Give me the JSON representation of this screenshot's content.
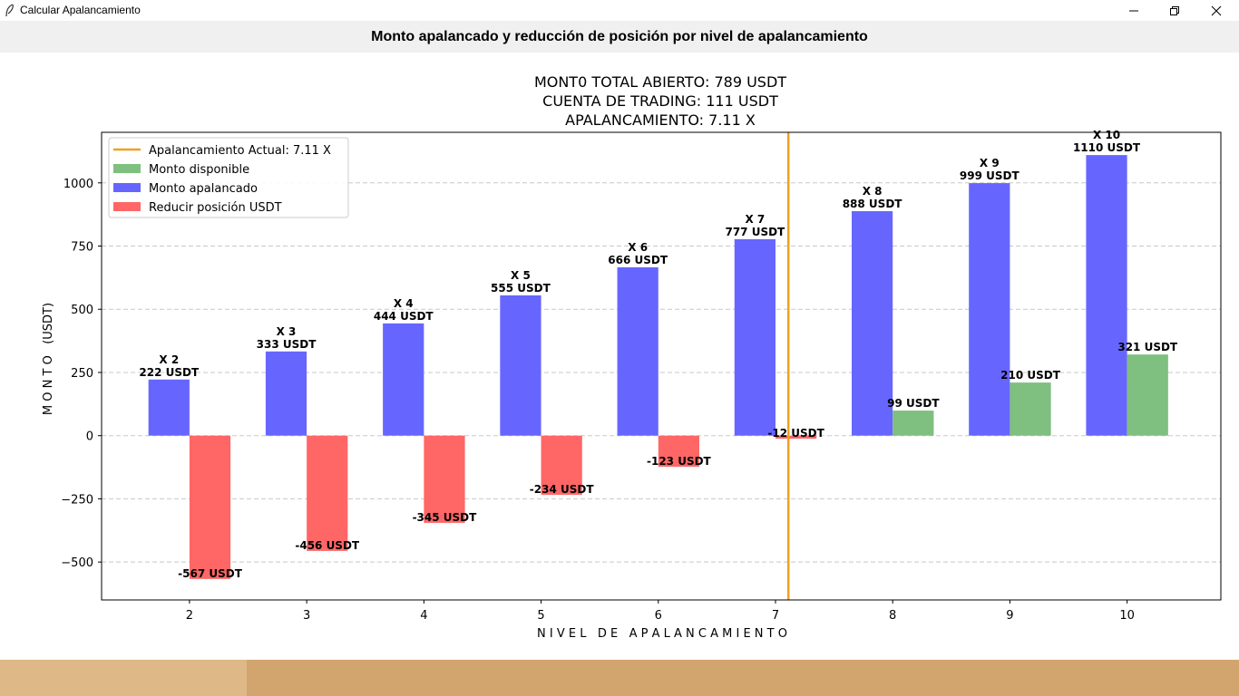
{
  "window": {
    "title": "Calcular Apalancamiento"
  },
  "header": {
    "title": "Monto apalancado y reducción de posición por nivel de apalancamiento"
  },
  "chart_data": {
    "type": "bar",
    "title_lines": [
      "MONT0 TOTAL ABIERTO: 789 USDT",
      "CUENTA DE TRADING: 111 USDT",
      "APALANCAMIENTO: 7.11  X"
    ],
    "xlabel": "N I V E L   D E   A P A L A N C A M I E N T O",
    "ylabel": "M O N T O   (USDT)",
    "x": [
      2,
      3,
      4,
      5,
      6,
      7,
      8,
      9,
      10
    ],
    "xlim": [
      1.25,
      10.8
    ],
    "ylim": [
      -650,
      1200
    ],
    "yticks": [
      -500,
      -250,
      0,
      250,
      500,
      750,
      1000
    ],
    "ytick_labels": [
      "−500",
      "−250",
      "0",
      "250",
      "500",
      "750",
      "1000"
    ],
    "series": [
      {
        "name": "Monto apalancado",
        "color": "#6666ff",
        "values": [
          222,
          333,
          444,
          555,
          666,
          777,
          888,
          999,
          1110
        ],
        "labels": [
          [
            "X 2",
            "222 USDT"
          ],
          [
            "X 3",
            "333 USDT"
          ],
          [
            "X 4",
            "444 USDT"
          ],
          [
            "X 5",
            "555 USDT"
          ],
          [
            "X 6",
            "666 USDT"
          ],
          [
            "X 7",
            "777 USDT"
          ],
          [
            "X 8",
            "888 USDT"
          ],
          [
            "X 9",
            "999 USDT"
          ],
          [
            "X 10",
            "1110 USDT"
          ]
        ]
      },
      {
        "name": "Reducir posición USDT",
        "color": "#ff6666",
        "values": [
          -567,
          -456,
          -345,
          -234,
          -123,
          -12,
          null,
          null,
          null
        ],
        "labels": [
          "-567 USDT",
          "-456 USDT",
          "-345 USDT",
          "-234 USDT",
          "-123 USDT",
          "-12 USDT",
          null,
          null,
          null
        ]
      },
      {
        "name": "Monto disponible",
        "color": "#7fbf7f",
        "values": [
          null,
          null,
          null,
          null,
          null,
          null,
          99,
          210,
          321
        ],
        "labels": [
          null,
          null,
          null,
          null,
          null,
          null,
          "99 USDT",
          "210 USDT",
          "321 USDT"
        ]
      }
    ],
    "vline": {
      "name": "Apalancamiento Actual: 7.11 X",
      "x": 7.11,
      "color": "#f0a020"
    },
    "legend": {
      "placement": "top-left",
      "order": [
        "Apalancamiento Actual: 7.11 X",
        "Monto disponible",
        "Monto apalancado",
        "Reducir posición USDT"
      ]
    },
    "grid": "y-dashed"
  },
  "colors": {
    "header_bg": "#f0f0f0",
    "bottom_left": "#deb887",
    "bottom_right": "#d2a56f"
  },
  "icons": {
    "app": "feather-icon",
    "minimize": "minimize-icon",
    "maximize": "restore-icon",
    "close": "close-icon"
  }
}
